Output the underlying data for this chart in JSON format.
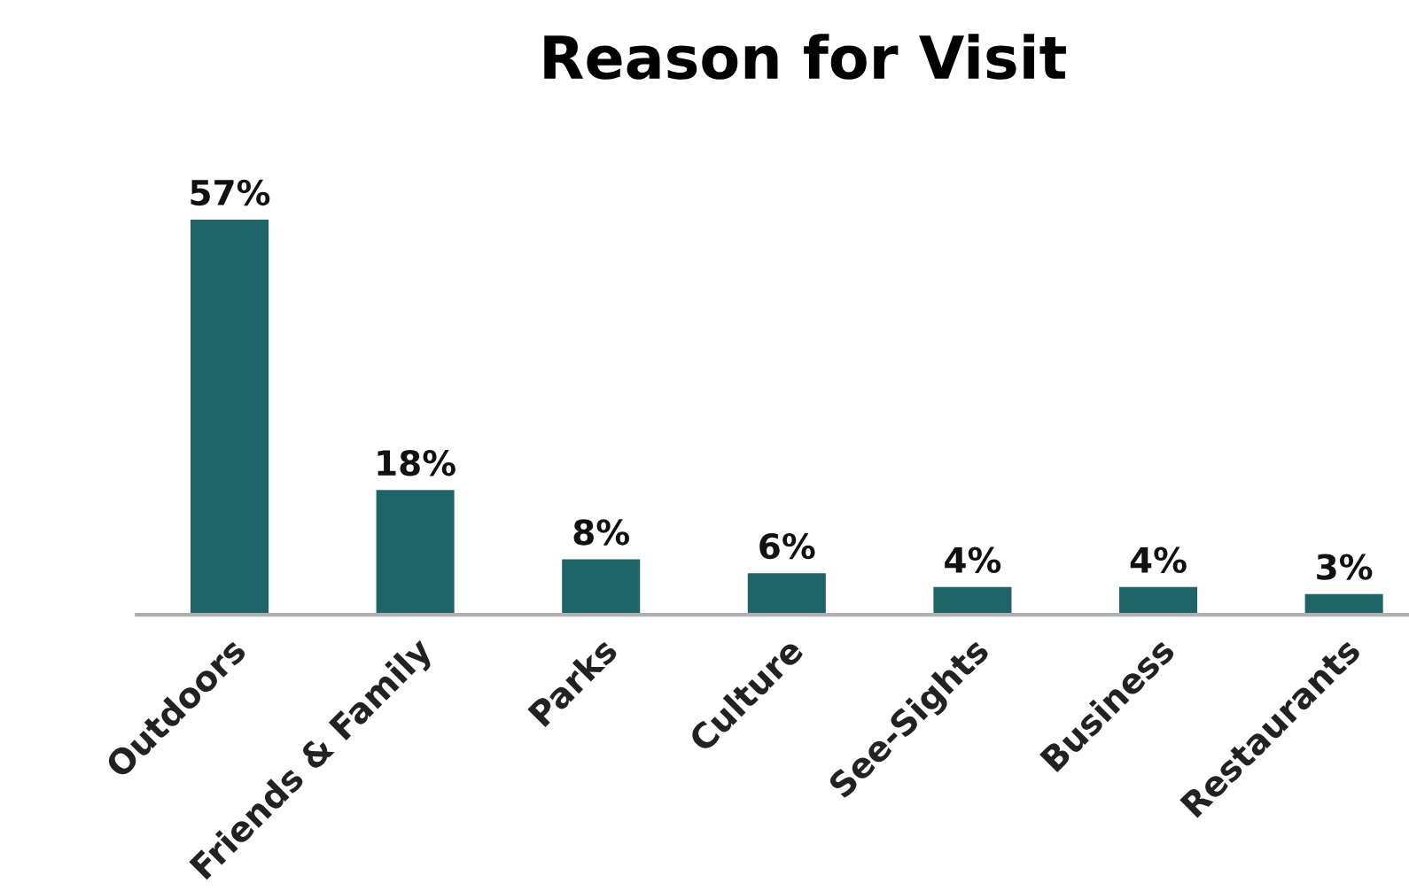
{
  "chart_data": {
    "type": "bar",
    "title": "Reason for Visit",
    "categories": [
      "Outdoors",
      "Friends & Family",
      "Parks",
      "Culture",
      "See-Sights",
      "Business",
      "Restaurants"
    ],
    "values": [
      57,
      18,
      8,
      6,
      4,
      4,
      3
    ],
    "value_labels": [
      "57%",
      "18%",
      "8%",
      "6%",
      "4%",
      "4%",
      "3%"
    ],
    "color": "#1f6469",
    "grid": false,
    "legend": false
  }
}
